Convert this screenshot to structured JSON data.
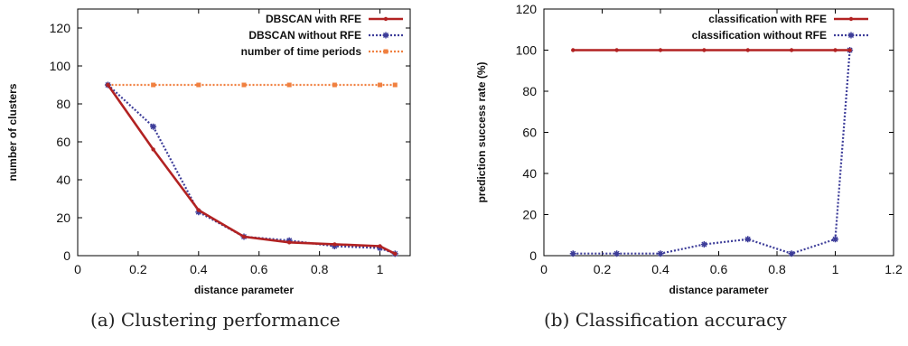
{
  "captions": {
    "a": "(a) Clustering performance",
    "b": "(b) Classification accuracy"
  },
  "chart_data": [
    {
      "type": "line",
      "title": "",
      "xlabel": "distance parameter",
      "ylabel": "number of clusters",
      "xlim": [
        0,
        1.1
      ],
      "ylim": [
        0,
        130
      ],
      "xticks": [
        0,
        0.2,
        0.4,
        0.6,
        0.8,
        1
      ],
      "xtick_labels": [
        "0",
        "0.2",
        "0.4",
        "0.6",
        "0.8",
        "1"
      ],
      "yticks": [
        0,
        20,
        40,
        60,
        80,
        100,
        120
      ],
      "ytick_labels": [
        "0",
        "20",
        "40",
        "60",
        "80",
        "100",
        "120"
      ],
      "grid": false,
      "legend_position": "top-right",
      "series": [
        {
          "name": "DBSCAN with RFE",
          "color": "#b22222",
          "style": "solid",
          "marker": "dot",
          "x": [
            0.1,
            0.25,
            0.4,
            0.55,
            0.7,
            0.85,
            1.0,
            1.05
          ],
          "y": [
            90,
            56,
            24,
            10,
            7,
            6,
            5,
            1
          ]
        },
        {
          "name": "DBSCAN without RFE",
          "color": "#3d3d99",
          "style": "dotted",
          "marker": "star",
          "x": [
            0.1,
            0.25,
            0.4,
            0.55,
            0.7,
            0.85,
            1.0,
            1.05
          ],
          "y": [
            90,
            68,
            23,
            10,
            8,
            5,
            4,
            1
          ]
        },
        {
          "name": "number of time periods",
          "color": "#f08040",
          "style": "dotted",
          "marker": "square",
          "x": [
            0.1,
            0.25,
            0.4,
            0.55,
            0.7,
            0.85,
            1.0,
            1.05
          ],
          "y": [
            90,
            90,
            90,
            90,
            90,
            90,
            90,
            90
          ]
        }
      ]
    },
    {
      "type": "line",
      "title": "",
      "xlabel": "distance parameter",
      "ylabel": "prediction success rate (%)",
      "xlim": [
        0,
        1.2
      ],
      "ylim": [
        0,
        120
      ],
      "xticks": [
        0,
        0.2,
        0.4,
        0.6,
        0.8,
        1,
        1.2
      ],
      "xtick_labels": [
        "0",
        "0.2",
        "0.4",
        "0.6",
        "0.8",
        "1",
        "1.2"
      ],
      "yticks": [
        0,
        20,
        40,
        60,
        80,
        100,
        120
      ],
      "ytick_labels": [
        "0",
        "20",
        "40",
        "60",
        "80",
        "100",
        "120"
      ],
      "grid": false,
      "legend_position": "top-right",
      "series": [
        {
          "name": "classification with RFE",
          "color": "#b22222",
          "style": "solid",
          "marker": "dot",
          "x": [
            0.1,
            0.25,
            0.4,
            0.55,
            0.7,
            0.85,
            1.0,
            1.05
          ],
          "y": [
            100,
            100,
            100,
            100,
            100,
            100,
            100,
            100
          ]
        },
        {
          "name": "classification without RFE",
          "color": "#3d3d99",
          "style": "dotted",
          "marker": "star",
          "x": [
            0.1,
            0.25,
            0.4,
            0.55,
            0.7,
            0.85,
            1.0,
            1.05
          ],
          "y": [
            1,
            1,
            1,
            5.5,
            8,
            1,
            8,
            100
          ]
        }
      ]
    }
  ]
}
